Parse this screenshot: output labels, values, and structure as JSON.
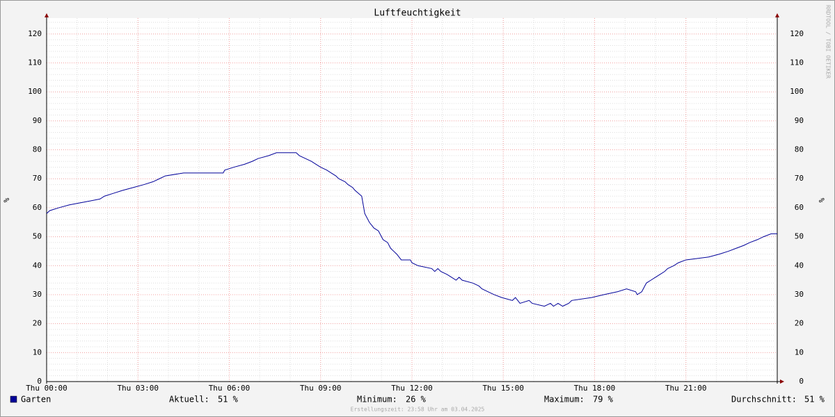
{
  "chart_data": {
    "type": "line",
    "title": "Luftfeuchtigkeit",
    "ylabel": "%",
    "y2label": "%",
    "watermark": "RRDTOOL / TOBI OETIKER",
    "xlim": [
      0,
      24
    ],
    "xticks": [
      {
        "value": 0,
        "label": "Thu 00:00"
      },
      {
        "value": 3,
        "label": "Thu 03:00"
      },
      {
        "value": 6,
        "label": "Thu 06:00"
      },
      {
        "value": 9,
        "label": "Thu 09:00"
      },
      {
        "value": 12,
        "label": "Thu 12:00"
      },
      {
        "value": 15,
        "label": "Thu 15:00"
      },
      {
        "value": 18,
        "label": "Thu 18:00"
      },
      {
        "value": 21,
        "label": "Thu 21:00"
      }
    ],
    "ylim": [
      0,
      125
    ],
    "yticks": [
      0,
      10,
      20,
      30,
      40,
      50,
      60,
      70,
      80,
      90,
      100,
      110,
      120
    ],
    "grid": true,
    "x": [
      0,
      0.1,
      0.4,
      0.75,
      1.25,
      1.75,
      1.9,
      2.2,
      2.5,
      2.85,
      3.2,
      3.5,
      3.7,
      3.9,
      4.5,
      5.8,
      5.85,
      6.15,
      6.5,
      6.75,
      6.95,
      7.3,
      7.55,
      8.2,
      8.3,
      8.5,
      8.7,
      8.85,
      9.0,
      9.2,
      9.35,
      9.5,
      9.6,
      9.8,
      9.9,
      10.05,
      10.13,
      10.35,
      10.45,
      10.6,
      10.75,
      10.9,
      11.05,
      11.2,
      11.3,
      11.4,
      11.5,
      11.65,
      11.95,
      12.0,
      12.2,
      12.65,
      12.75,
      12.85,
      12.95,
      13.15,
      13.3,
      13.45,
      13.55,
      13.65,
      14.0,
      14.2,
      14.3,
      14.5,
      14.7,
      14.95,
      15.3,
      15.4,
      15.55,
      15.85,
      15.95,
      16.35,
      16.55,
      16.65,
      16.8,
      16.95,
      17.15,
      17.25,
      17.9,
      18.3,
      18.75,
      19.05,
      19.35,
      19.4,
      19.55,
      19.7,
      19.85,
      20.0,
      20.15,
      20.3,
      20.4,
      20.6,
      20.75,
      21.0,
      21.75,
      22.1,
      22.4,
      22.65,
      22.9,
      23.1,
      23.35,
      23.55,
      23.8,
      24
    ],
    "series": [
      {
        "name": "Garten",
        "color": "#000099",
        "values": [
          58,
          59,
          60,
          61,
          62,
          63,
          64,
          65,
          66,
          67,
          68,
          69,
          70,
          71,
          72,
          72,
          73,
          74,
          75,
          76,
          77,
          78,
          79,
          79,
          78,
          77,
          76,
          75,
          74,
          73,
          72,
          71,
          70,
          69,
          68,
          67,
          66,
          64,
          58,
          55,
          53,
          52,
          49,
          48,
          46,
          45,
          44,
          42,
          42,
          41,
          40,
          39,
          38,
          39,
          38,
          37,
          36,
          35,
          36,
          35,
          34,
          33,
          32,
          31,
          30,
          29,
          28,
          29,
          27,
          28,
          27,
          26,
          27,
          26,
          27,
          26,
          27,
          28,
          29,
          30,
          31,
          32,
          31,
          30,
          31,
          34,
          35,
          36,
          37,
          38,
          39,
          40,
          41,
          42,
          43,
          44,
          45,
          46,
          47,
          48,
          49,
          50,
          51,
          51
        ]
      }
    ],
    "stats": [
      {
        "label": "Aktuell:",
        "text": "51 %"
      },
      {
        "label": "Minimum:",
        "text": "26 %"
      },
      {
        "label": "Maximum:",
        "text": "79 %"
      },
      {
        "label": "Durchschnitt:",
        "text": "51 %"
      }
    ],
    "footer": "Erstellungszeit: 23:58 Uhr am 03.04.2025"
  }
}
